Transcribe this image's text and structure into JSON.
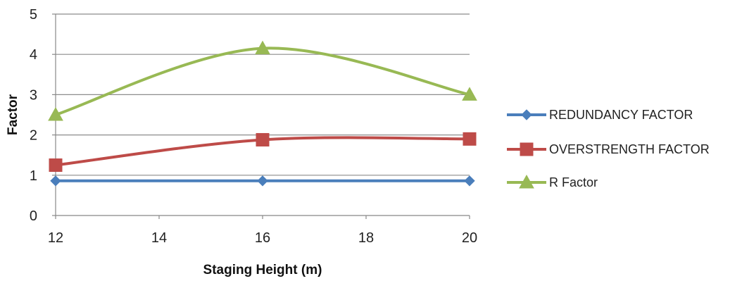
{
  "chart_data": {
    "type": "line",
    "xlabel": "Staging Height (m)",
    "ylabel": "Factor",
    "xlim": [
      12,
      20
    ],
    "ylim": [
      0,
      5
    ],
    "xticks": [
      12,
      14,
      16,
      18,
      20
    ],
    "yticks": [
      0,
      1,
      2,
      3,
      4,
      5
    ],
    "grid": "horizontal",
    "legend_position": "right",
    "series": [
      {
        "name": "REDUNDANCY FACTOR",
        "color": "#4a7ebb",
        "marker": "diamond",
        "x": [
          12,
          16,
          20
        ],
        "values": [
          0.86,
          0.86,
          0.86
        ]
      },
      {
        "name": "OVERSTRENGTH FACTOR",
        "color": "#be4b48",
        "marker": "square",
        "x": [
          12,
          16,
          20
        ],
        "values": [
          1.25,
          1.88,
          1.9
        ]
      },
      {
        "name": "R Factor",
        "color": "#98b954",
        "marker": "triangle",
        "x": [
          12,
          16,
          20
        ],
        "values": [
          2.5,
          4.15,
          3.0
        ]
      }
    ]
  }
}
